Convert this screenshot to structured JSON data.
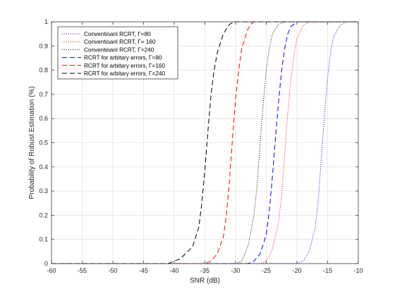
{
  "chart_data": {
    "type": "line",
    "xlabel": "SNR (dB)",
    "ylabel": "Probability of Robust Estimation (%)",
    "xlim": [
      -60,
      -10
    ],
    "ylim": [
      0,
      1
    ],
    "xticks": [
      -60,
      -55,
      -50,
      -45,
      -40,
      -35,
      -30,
      -25,
      -20,
      -15,
      -10
    ],
    "yticks": [
      0,
      0.1,
      0.2,
      0.3,
      0.4,
      0.5,
      0.6,
      0.7,
      0.8,
      0.9,
      1
    ],
    "grid": true,
    "legend_position": "top-left",
    "series": [
      {
        "name": "Conventioanl RCRT, Γ=80",
        "color": "#0000ff",
        "dash": "dotted",
        "x": [
          -60,
          -20,
          -19,
          -18,
          -17,
          -16.5,
          -16,
          -15.5,
          -15,
          -14.5,
          -14,
          -13,
          -12,
          -11,
          -10
        ],
        "y": [
          0,
          0,
          0.01,
          0.05,
          0.15,
          0.27,
          0.45,
          0.62,
          0.77,
          0.88,
          0.94,
          0.985,
          1,
          1,
          1
        ]
      },
      {
        "name": "Conventioanl RCRT, Γ= 160",
        "color": "#ff0000",
        "dash": "dotted",
        "x": [
          -60,
          -26,
          -25,
          -24,
          -23,
          -22.5,
          -22,
          -21.5,
          -21,
          -20.5,
          -20,
          -19,
          -18,
          -17,
          -10
        ],
        "y": [
          0,
          0,
          0.01,
          0.06,
          0.17,
          0.28,
          0.45,
          0.62,
          0.76,
          0.86,
          0.93,
          0.985,
          1,
          1,
          1
        ]
      },
      {
        "name": "Conventioanl RCRT, Γ=240",
        "color": "#000000",
        "dash": "dotted",
        "x": [
          -60,
          -30,
          -29,
          -28,
          -27,
          -26.5,
          -26,
          -25.5,
          -25,
          -24.5,
          -24,
          -23,
          -22,
          -21,
          -10
        ],
        "y": [
          0,
          0,
          0.01,
          0.07,
          0.2,
          0.32,
          0.5,
          0.66,
          0.8,
          0.89,
          0.95,
          0.99,
          1,
          1,
          1
        ]
      },
      {
        "name": "RCRT for arbitary errors, Γ=80",
        "color": "#0000ff",
        "dash": "dashed",
        "x": [
          -60,
          -28,
          -27,
          -26,
          -25,
          -24.5,
          -24,
          -23.5,
          -23,
          -22.5,
          -22,
          -21.5,
          -21,
          -20,
          -10
        ],
        "y": [
          0,
          0,
          0.01,
          0.04,
          0.12,
          0.22,
          0.36,
          0.52,
          0.67,
          0.8,
          0.89,
          0.95,
          0.98,
          1,
          1
        ]
      },
      {
        "name": "RCRT for arbitary errors, Γ=160",
        "color": "#ff0000",
        "dash": "dashed",
        "x": [
          -60,
          -35,
          -34,
          -33,
          -32,
          -31.5,
          -31,
          -30.5,
          -30,
          -29.5,
          -29,
          -28,
          -27.5,
          -27,
          -10
        ],
        "y": [
          0,
          0,
          0.01,
          0.04,
          0.11,
          0.2,
          0.34,
          0.52,
          0.68,
          0.8,
          0.89,
          0.97,
          0.99,
          1,
          1
        ]
      },
      {
        "name": "RCRT for arbitary errors, Γ=240",
        "color": "#000000",
        "dash": "dashed",
        "x": [
          -60,
          -41,
          -39,
          -37,
          -36,
          -35.5,
          -35,
          -34.5,
          -34,
          -33.5,
          -33,
          -32,
          -31,
          -30,
          -10
        ],
        "y": [
          0,
          0,
          0.02,
          0.07,
          0.15,
          0.25,
          0.39,
          0.55,
          0.7,
          0.8,
          0.87,
          0.95,
          0.99,
          1,
          1
        ]
      }
    ]
  }
}
